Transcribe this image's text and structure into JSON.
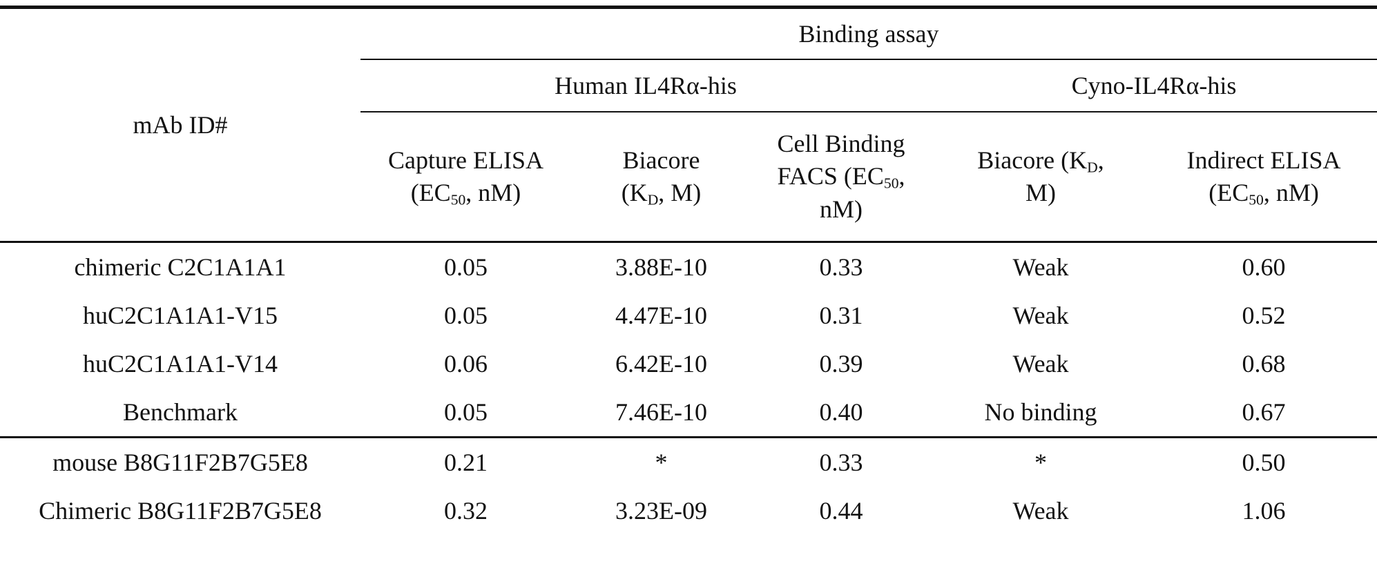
{
  "table": {
    "stub_header": "mAb ID#",
    "group_header": "Binding assay",
    "subgroups": [
      "Human IL4Rα-his",
      "Cyno-IL4Rα-his"
    ],
    "columns": [
      {
        "pre": "Capture ELISA (EC",
        "sub": "50",
        "post": ", nM)"
      },
      {
        "pre": "Biacore (K",
        "sub": "D",
        "post": ", M)"
      },
      {
        "pre": "Cell Binding FACS (EC",
        "sub": "50",
        "post": ", nM)"
      },
      {
        "pre": "Biacore (K",
        "sub": "D",
        "post": ", M)"
      },
      {
        "pre": "Indirect ELISA (EC",
        "sub": "50",
        "post": ", nM)"
      }
    ],
    "groups": [
      [
        [
          "chimeric C2C1A1A1",
          "0.05",
          "3.88E-10",
          "0.33",
          "Weak",
          "0.60"
        ],
        [
          "huC2C1A1A1-V15",
          "0.05",
          "4.47E-10",
          "0.31",
          "Weak",
          "0.52"
        ],
        [
          "huC2C1A1A1-V14",
          "0.06",
          "6.42E-10",
          "0.39",
          "Weak",
          "0.68"
        ],
        [
          "Benchmark",
          "0.05",
          "7.46E-10",
          "0.40",
          "No binding",
          "0.67"
        ]
      ],
      [
        [
          "mouse B8G11F2B7G5E8",
          "0.21",
          "*",
          "0.33",
          "*",
          "0.50"
        ],
        [
          "Chimeric B8G11F2B7G5E8",
          "0.32",
          "3.23E-09",
          "0.44",
          "Weak",
          "1.06"
        ]
      ]
    ]
  }
}
